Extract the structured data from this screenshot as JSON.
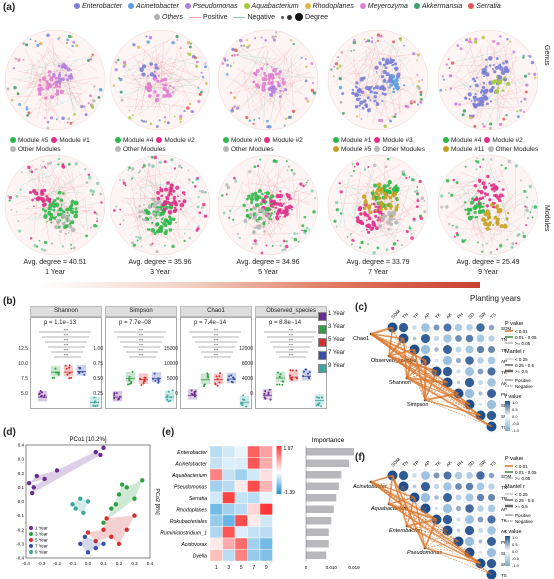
{
  "panel_labels": {
    "a": "(a)",
    "b": "(b)",
    "c": "(c)",
    "d": "(d)",
    "e": "(e)",
    "f": "(f)"
  },
  "top_legend": {
    "genera": [
      {
        "name": "Enterobacter",
        "color": "#7b7fd6"
      },
      {
        "name": "Acinetobacter",
        "color": "#5aa0e0"
      },
      {
        "name": "Pseudomonas",
        "color": "#b37fe0"
      },
      {
        "name": "Aquabacterium",
        "color": "#a5c93e"
      },
      {
        "name": "Rhodoplanes",
        "color": "#e0b84a"
      },
      {
        "name": "Meyerozyma",
        "color": "#e07fd0"
      },
      {
        "name": "Akkermansia",
        "color": "#3aa06a"
      },
      {
        "name": "Serratia",
        "color": "#e05a5a"
      }
    ],
    "others": "Others",
    "others_color": "#b0b0b0",
    "positive": "Positive",
    "positive_color": "#f0a0a0",
    "negative": "Negative",
    "negative_color": "#7fcfb0",
    "degree": "Degree"
  },
  "row_labels": {
    "genus": "Genus",
    "modules": "Modules"
  },
  "networks": [
    {
      "modules": [
        {
          "label": "Module #5",
          "color": "#2db84a"
        },
        {
          "label": "Module #1",
          "color": "#e0308a"
        },
        {
          "label": "Other Modules",
          "color": "#b8b8b8"
        }
      ],
      "avg": "Avg. degree = 40.51",
      "year": "1 Year"
    },
    {
      "modules": [
        {
          "label": "Module #4",
          "color": "#2db84a"
        },
        {
          "label": "Module #2",
          "color": "#e0308a"
        },
        {
          "label": "Other Modules",
          "color": "#b8b8b8"
        }
      ],
      "avg": "Avg. degree = 35.96",
      "year": "3 Year"
    },
    {
      "modules": [
        {
          "label": "Module #0",
          "color": "#2db84a"
        },
        {
          "label": "Module #2",
          "color": "#e0308a"
        },
        {
          "label": "Other Modules",
          "color": "#b8b8b8"
        }
      ],
      "avg": "Avg. degree = 34.96",
      "year": "5 Year"
    },
    {
      "modules": [
        {
          "label": "Module #1",
          "color": "#2db84a"
        },
        {
          "label": "Module #3",
          "color": "#e0308a"
        },
        {
          "label": "Module #5",
          "color": "#c8a020"
        },
        {
          "label": "Other Modules",
          "color": "#b8b8b8"
        }
      ],
      "avg": "Avg. degree = 33.79",
      "year": "7 Year"
    },
    {
      "modules": [
        {
          "label": "Module #4",
          "color": "#2db84a"
        },
        {
          "label": "Module #2",
          "color": "#e0308a"
        },
        {
          "label": "Module #11",
          "color": "#c8a020"
        },
        {
          "label": "Other Modules",
          "color": "#b8b8b8"
        }
      ],
      "avg": "Avg. degree = 25.49",
      "year": "9 Year"
    }
  ],
  "planting_years": "Planting years",
  "panel_b": {
    "facets": [
      {
        "name": "Shannon",
        "p": "p = 1.1e−13",
        "yticks": [
          "12.5",
          "10.0",
          "7.5",
          "5.0"
        ]
      },
      {
        "name": "Simpson",
        "p": "p = 7.7e−08",
        "yticks": [
          "1.00",
          "0.75",
          "0.50",
          "0.25"
        ]
      },
      {
        "name": "Chao1",
        "p": "p = 7.4e−14",
        "yticks": [
          "15000",
          "10000",
          "5000",
          "0"
        ]
      },
      {
        "name": "Observed_species",
        "p": "p = 8.8e−14",
        "yticks": [
          "12000",
          "8000",
          "4000",
          "0"
        ]
      }
    ],
    "legend": [
      {
        "label": "1 Year",
        "color": "#6a2c91"
      },
      {
        "label": "3 Year",
        "color": "#2f9e44"
      },
      {
        "label": "5 Year",
        "color": "#d62d2d"
      },
      {
        "label": "7 Year",
        "color": "#3a4fa8"
      },
      {
        "label": "9 Year",
        "color": "#3aa8a0"
      }
    ],
    "medians": [
      [
        6.0,
        9.6,
        9.6,
        9.7,
        5.2
      ],
      [
        0.35,
        0.62,
        0.6,
        0.62,
        0.35
      ],
      [
        2500,
        7000,
        7000,
        7200,
        500
      ],
      [
        2000,
        6000,
        6200,
        6400,
        800
      ]
    ]
  },
  "panel_c": {
    "vars": [
      "SOM",
      "TN",
      "TP",
      "AP",
      "TK",
      "AK",
      "PH",
      "SD",
      "SW",
      "TS"
    ],
    "targets": [
      "Chao1",
      "Observed_species",
      "Shannon",
      "Simpson"
    ],
    "legend": {
      "p_title": "P value",
      "p_items": [
        "< 0.01",
        "0.01 - 0.05",
        ">= 0.05"
      ],
      "m_title": "Mantel r",
      "m_items": [
        "< 0.25",
        "0.25 - 0.5",
        ">= 0.5"
      ],
      "pos": "Positive",
      "neg": "Negative",
      "r_title": "r value",
      "r_ticks": [
        "1.0",
        "0.5",
        "0.0",
        "-0.5",
        "-1.0"
      ]
    }
  },
  "panel_f": {
    "targets": [
      "Acinetobacter",
      "Aquabacterium",
      "Enterobacter",
      "Pseudomonas"
    ]
  },
  "chart_data": [
    {
      "type": "scatter",
      "title": "PCo1 [10.2%]",
      "xlabel": "",
      "ylabel": "PCo2 [8%]",
      "xlim": [
        -0.4,
        0.4
      ],
      "ylim": [
        -0.4,
        0.4
      ],
      "xticks": [
        "-0.4",
        "-0.3",
        "-0.2",
        "-0.1",
        "0.0",
        "0.1",
        "0.2",
        "0.3",
        "0.4"
      ],
      "yticks": [
        "0.4",
        "0.3",
        "0.2",
        "0.1",
        "0.0",
        "-0.1",
        "-0.2",
        "-0.3",
        "-0.4"
      ],
      "series": [
        {
          "name": "1 Year",
          "color": "#6a2c91",
          "points": [
            [
              -0.35,
              0.1
            ],
            [
              -0.38,
              0.13
            ],
            [
              -0.33,
              0.18
            ],
            [
              -0.2,
              0.22
            ],
            [
              -0.28,
              0.16
            ],
            [
              -0.36,
              0.06
            ],
            [
              0.05,
              0.35
            ],
            [
              0.1,
              0.38
            ],
            [
              0.08,
              0.33
            ]
          ]
        },
        {
          "name": "3 Year",
          "color": "#2f9e44",
          "points": [
            [
              0.2,
              0.05
            ],
            [
              0.25,
              0.1
            ],
            [
              0.3,
              0.02
            ],
            [
              0.15,
              -0.05
            ],
            [
              0.22,
              0.12
            ],
            [
              0.35,
              0.15
            ],
            [
              0.1,
              -0.15
            ],
            [
              0.18,
              -0.02
            ]
          ]
        },
        {
          "name": "5 Year",
          "color": "#d62d2d",
          "points": [
            [
              0.1,
              -0.2
            ],
            [
              0.15,
              -0.25
            ],
            [
              0.2,
              -0.3
            ],
            [
              0.05,
              -0.28
            ],
            [
              0.25,
              -0.2
            ],
            [
              0.3,
              -0.1
            ],
            [
              0.0,
              -0.22
            ],
            [
              0.12,
              -0.12
            ]
          ]
        },
        {
          "name": "7 Year",
          "color": "#3a4fa8",
          "points": [
            [
              -0.05,
              -0.3
            ],
            [
              0.05,
              -0.33
            ],
            [
              0.0,
              -0.36
            ],
            [
              0.1,
              -0.3
            ],
            [
              -0.02,
              -0.25
            ]
          ]
        },
        {
          "name": "9 Year",
          "color": "#3aa8a0",
          "points": [
            [
              -0.1,
              -0.02
            ],
            [
              -0.05,
              0.02
            ],
            [
              -0.08,
              -0.05
            ],
            [
              -0.03,
              -0.08
            ],
            [
              0.0,
              0.0
            ]
          ]
        }
      ]
    },
    {
      "type": "heatmap",
      "title": "Importance",
      "rows": [
        "Enterobacter",
        "Acinetobacter",
        "Aquabacterium",
        "Pseudomonas",
        "Serratia",
        "Rhodoplanes",
        "Rokubacteriales",
        "Ruminiclostridium_1",
        "Acidovorax",
        "Dyella"
      ],
      "cols": [
        "1",
        "3",
        "5",
        "7",
        "9"
      ],
      "scale": {
        "max": "1.97",
        "min": "-1.39"
      },
      "values": [
        [
          -0.6,
          -0.4,
          -0.2,
          1.5,
          0.9
        ],
        [
          -0.5,
          -0.3,
          -0.3,
          1.6,
          0.8
        ],
        [
          1.2,
          -0.5,
          -0.8,
          -0.4,
          0.3
        ],
        [
          -0.8,
          -0.6,
          0.2,
          1.7,
          0.7
        ],
        [
          -0.4,
          1.8,
          -0.5,
          -0.6,
          -0.2
        ],
        [
          -1.2,
          -0.8,
          -0.6,
          0.4,
          1.9
        ],
        [
          -0.9,
          -1.3,
          1.7,
          0.2,
          -0.4
        ],
        [
          -0.7,
          1.6,
          -0.3,
          -0.5,
          -0.6
        ],
        [
          0.2,
          0.8,
          1.4,
          -0.8,
          -1.2
        ],
        [
          0.6,
          -0.6,
          1.2,
          -0.9,
          -1.1
        ]
      ],
      "importance": [
        0.019,
        0.017,
        0.014,
        0.013,
        0.012,
        0.011,
        0.01,
        0.009,
        0.009,
        0.008
      ],
      "importance_ticks": [
        "0",
        "0.010",
        "0.019"
      ]
    }
  ]
}
